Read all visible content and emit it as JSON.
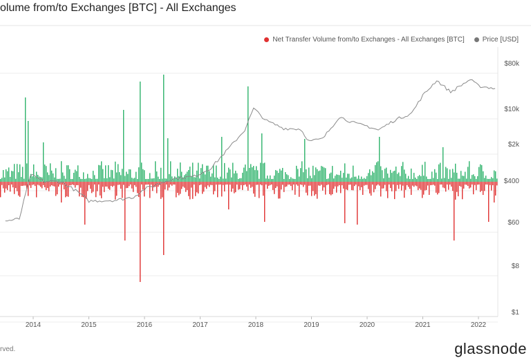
{
  "title": "olume from/to Exchanges [BTC] - All Exchanges",
  "footer_left": "rved.",
  "brand": "glassnode",
  "legend": [
    {
      "label": "Net Transfer Volume from/to Exchanges - All Exchanges [BTC]",
      "color": "#e03131"
    },
    {
      "label": "Price [USD]",
      "color": "#777777"
    }
  ],
  "colors": {
    "inflow": "#2fb36b",
    "outflow": "#e03131",
    "price": "#8a8a8a",
    "grid": "#ececec"
  },
  "chart_data": {
    "type": "bar",
    "x_ticks": [
      "2014",
      "2015",
      "2016",
      "2017",
      "2018",
      "2019",
      "2020",
      "2021",
      "2022"
    ],
    "y_right_ticks": [
      "$80k",
      "$10k",
      "$2k",
      "$400",
      "$60",
      "$8",
      "$1"
    ],
    "y_right_scale": "log",
    "grid": true,
    "legend_position": "top-right",
    "series": [
      {
        "name": "Net Transfer Volume from/to Exchanges - All Exchanges [BTC]",
        "note": "green above zero, red below zero"
      },
      {
        "name": "Price [USD]",
        "type": "line",
        "x": [
          2013.5,
          2013.75,
          2013.95,
          2014.2,
          2014.5,
          2014.8,
          2015.0,
          2015.5,
          2015.8,
          2016.0,
          2016.5,
          2016.9,
          2017.2,
          2017.5,
          2017.8,
          2017.96,
          2018.2,
          2018.5,
          2018.8,
          2018.96,
          2019.2,
          2019.5,
          2019.8,
          2020.0,
          2020.2,
          2020.5,
          2020.8,
          2021.0,
          2021.25,
          2021.5,
          2021.85,
          2022.0,
          2022.3
        ],
        "values": [
          100,
          110,
          800,
          600,
          600,
          380,
          250,
          260,
          300,
          430,
          680,
          750,
          1100,
          2500,
          6000,
          16000,
          9000,
          6500,
          6300,
          3600,
          4000,
          11000,
          8000,
          7200,
          6000,
          9500,
          13000,
          29000,
          58000,
          34000,
          60000,
          45000,
          40000
        ]
      }
    ]
  }
}
